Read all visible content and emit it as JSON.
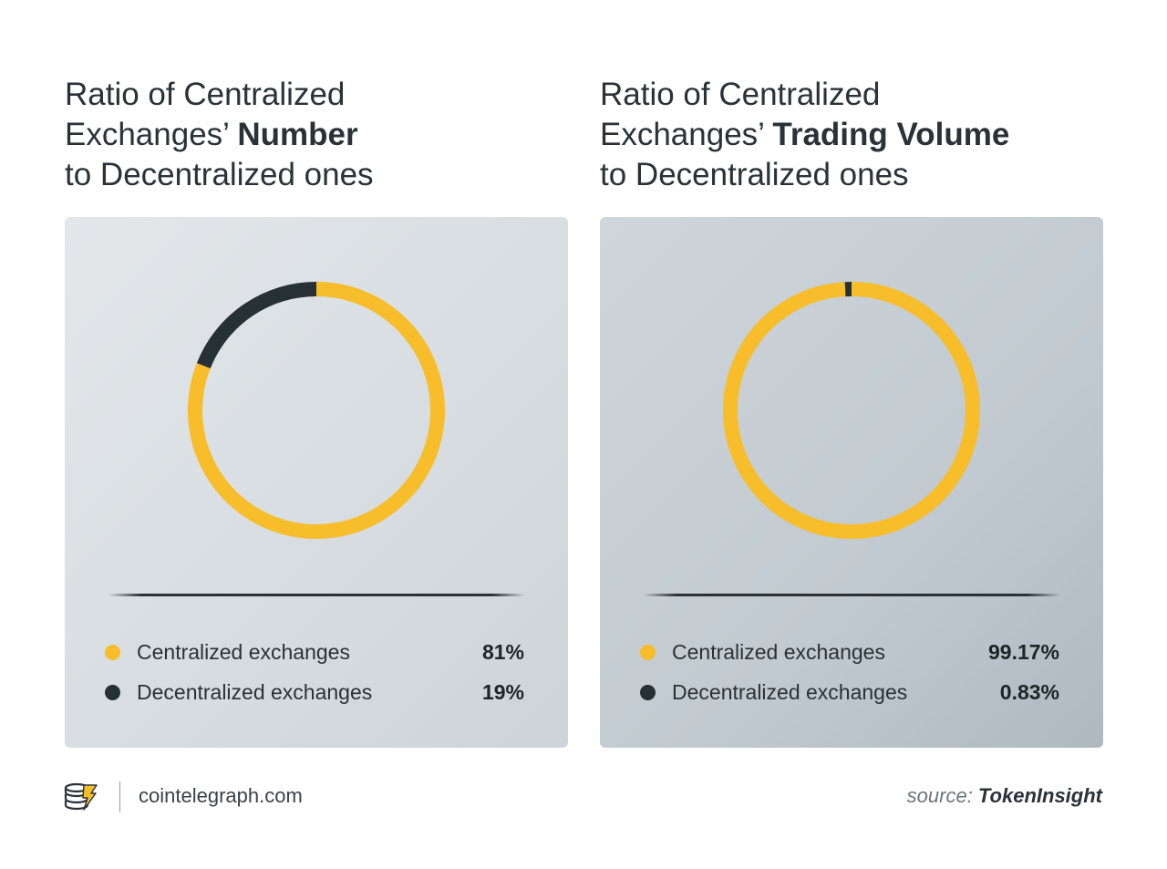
{
  "colors": {
    "centralized": "#f7bd2b",
    "decentralized": "#263035"
  },
  "charts": [
    {
      "title_line1": "Ratio of Centralized",
      "title_line2_prefix": "Exchanges’ ",
      "title_line2_bold": "Number",
      "title_line3": "to Decentralized ones"
    },
    {
      "title_line1": "Ratio of Centralized",
      "title_line2_prefix": "Exchanges’ ",
      "title_line2_bold": "Trading Volume",
      "title_line3": "to Decentralized ones"
    }
  ],
  "chart_data": [
    {
      "type": "pie",
      "title": "Ratio of Centralized Exchanges’ Number to Decentralized ones",
      "categories": [
        "Centralized exchanges",
        "Decentralized exchanges"
      ],
      "values": [
        81,
        19
      ],
      "value_labels": [
        "81%",
        "19%"
      ],
      "legend": "bottom"
    },
    {
      "type": "pie",
      "title": "Ratio of Centralized Exchanges’ Trading Volume to Decentralized ones",
      "categories": [
        "Centralized exchanges",
        "Decentralized exchanges"
      ],
      "values": [
        99.17,
        0.83
      ],
      "value_labels": [
        "99.17%",
        "0.83%"
      ],
      "legend": "bottom"
    }
  ],
  "footer": {
    "site": "cointelegraph.com",
    "source_prefix": "source: ",
    "source_name": "TokenInsight",
    "logo_icon": "cointelegraph-logo-icon"
  }
}
